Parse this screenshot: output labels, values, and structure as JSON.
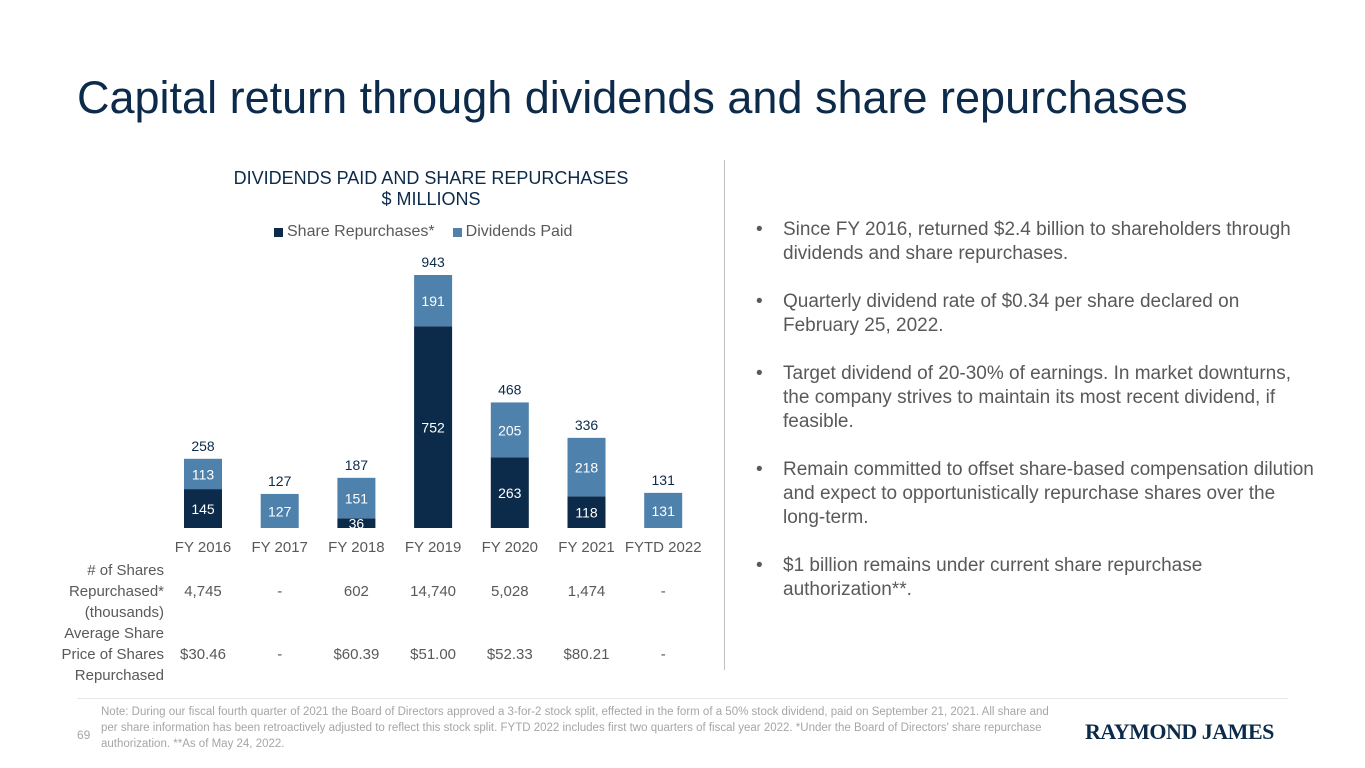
{
  "page": {
    "title": "Capital return through dividends and share repurchases",
    "page_number": "69",
    "logo_text": "RAYMOND JAMES",
    "note": "Note: During our fiscal fourth quarter of 2021 the Board of Directors approved a 3-for-2 stock split, effected in the form of a 50% stock dividend, paid on September 21, 2021. All share and per share information has been retroactively adjusted to reflect this stock split. FYTD 2022 includes first two quarters of fiscal year 2022. *Under the Board of Directors' share repurchase authorization. **As of May 24, 2022."
  },
  "colors": {
    "repurchases": "#0c2a4a",
    "dividends": "#4e81ab",
    "title": "#0c2a4a",
    "text": "#595959"
  },
  "chart_data": {
    "type": "bar",
    "stacked": true,
    "title": "DIVIDENDS PAID AND SHARE REPURCHASES",
    "subtitle": "$ MILLIONS",
    "legend_position": "top",
    "categories": [
      "FY 2016",
      "FY 2017",
      "FY 2018",
      "FY 2019",
      "FY 2020",
      "FY 2021",
      "FYTD 2022"
    ],
    "series": [
      {
        "name": "Share Repurchases*",
        "values": [
          145,
          0,
          36,
          752,
          263,
          118,
          0
        ],
        "labels": [
          "145",
          "",
          "36",
          "752",
          "263",
          "118",
          ""
        ]
      },
      {
        "name": "Dividends Paid",
        "values": [
          113,
          127,
          151,
          191,
          205,
          218,
          131
        ],
        "labels": [
          "113",
          "127",
          "151",
          "191",
          "205",
          "218",
          "131"
        ]
      }
    ],
    "totals": [
      "258",
      "127",
      "187",
      "943",
      "468",
      "336",
      "131"
    ],
    "ylim": [
      0,
      1000
    ]
  },
  "table": {
    "rows": [
      {
        "label": "# of Shares Repurchased* (thousands)",
        "values": [
          "4,745",
          "-",
          "602",
          "14,740",
          "5,028",
          "1,474",
          "-"
        ]
      },
      {
        "label": "Average Share Price of Shares Repurchased",
        "values": [
          "$30.46",
          "-",
          "$60.39",
          "$51.00",
          "$52.33",
          "$80.21",
          "-"
        ]
      }
    ]
  },
  "bullets": [
    "Since FY 2016, returned $2.4 billion to shareholders through dividends and share repurchases.",
    "Quarterly dividend rate of $0.34 per share declared on February 25, 2022.",
    "Target dividend of 20-30% of earnings. In market downturns, the company strives to maintain its most recent dividend, if feasible.",
    "Remain committed to offset share-based compensation dilution and expect to opportunistically repurchase shares over the long-term.",
    "$1 billion remains under current share repurchase authorization**."
  ],
  "bullet_symbol": "•"
}
